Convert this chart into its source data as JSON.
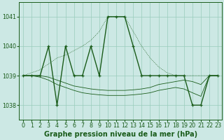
{
  "title": "Graphe pression niveau de la mer (hPa)",
  "background_color": "#cce8e4",
  "grid_color": "#99ccbb",
  "line_color": "#1a5c1a",
  "x_labels": [
    "0",
    "1",
    "2",
    "3",
    "4",
    "5",
    "6",
    "7",
    "8",
    "9",
    "10",
    "11",
    "12",
    "13",
    "14",
    "15",
    "16",
    "17",
    "18",
    "19",
    "20",
    "21",
    "22",
    "23"
  ],
  "main_x": [
    0,
    1,
    2,
    3,
    4,
    5,
    6,
    7,
    8,
    9,
    10,
    11,
    12,
    13,
    14,
    15,
    16,
    17,
    18,
    19,
    20,
    21,
    22,
    23
  ],
  "main_y": [
    1039,
    1039,
    1039,
    1040,
    1038,
    1040,
    1039,
    1039,
    1040,
    1039,
    1041,
    1041,
    1041,
    1040,
    1039,
    1039,
    1039,
    1039,
    1039,
    1039,
    1038,
    1038,
    1039,
    1039
  ],
  "upper_dotted_y": [
    1039.0,
    1039.1,
    1039.2,
    1039.4,
    1039.6,
    1039.7,
    1039.85,
    1040.0,
    1040.2,
    1040.5,
    1041.0,
    1041.0,
    1041.0,
    1040.5,
    1040.0,
    1039.6,
    1039.3,
    1039.1,
    1039.0,
    1039.0,
    1039.0,
    1039.0,
    1039.0,
    1039.0
  ],
  "lower_line1_y": [
    1039.0,
    1039.0,
    1039.0,
    1038.95,
    1038.85,
    1038.75,
    1038.65,
    1038.6,
    1038.55,
    1038.52,
    1038.5,
    1038.5,
    1038.5,
    1038.52,
    1038.55,
    1038.6,
    1038.7,
    1038.75,
    1038.8,
    1038.85,
    1038.8,
    1038.7,
    1039.0,
    1039.0
  ],
  "lower_line2_y": [
    1039.0,
    1039.0,
    1038.95,
    1038.85,
    1038.7,
    1038.6,
    1038.5,
    1038.42,
    1038.38,
    1038.35,
    1038.33,
    1038.33,
    1038.33,
    1038.35,
    1038.38,
    1038.42,
    1038.5,
    1038.55,
    1038.6,
    1038.55,
    1038.42,
    1038.3,
    1039.0,
    1039.0
  ],
  "ylim": [
    1037.5,
    1041.5
  ],
  "yticks": [
    1038,
    1039,
    1040,
    1041
  ],
  "title_fontsize": 7.0,
  "tick_fontsize": 5.8,
  "figsize": [
    3.2,
    2.0
  ],
  "dpi": 100
}
